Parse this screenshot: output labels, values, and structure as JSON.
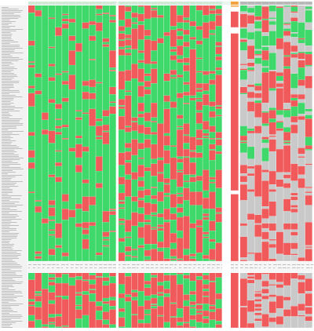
{
  "screen": {
    "title": "",
    "description": ""
  },
  "legend": {
    "pass_label": "",
    "fail_label": "",
    "na_label": ""
  },
  "colors": {
    "pass": "#3fd86a",
    "fail": "#f05a5a",
    "na": "#c9c9c9",
    "blank": "#ffffff",
    "label_bg": "#f2f2f2",
    "header_orange": "#f4a23c",
    "header_gray": "#b8b8b8",
    "grid_line": "#e0e0e0",
    "label_text": "#9a9a9a"
  },
  "grid": {
    "icon": "status-matrix-icon",
    "column_groups": [
      {
        "name": "group-a",
        "status_bias": "pass",
        "columns": 13
      },
      {
        "name": "group-b",
        "status_bias": "mixed",
        "columns": 16
      },
      {
        "name": "group-c",
        "status_bias": "fail",
        "columns": 1
      },
      {
        "name": "group-d",
        "status_bias": "na-fail",
        "columns": 10
      }
    ],
    "row_sections": [
      {
        "name": "main",
        "rows": 210
      },
      {
        "name": "secondary",
        "rows": 48
      }
    ],
    "pass_ratio_main_group_a": 0.85,
    "pass_ratio_main_group_b": 0.55,
    "pass_ratio_secondary": 0.35
  }
}
